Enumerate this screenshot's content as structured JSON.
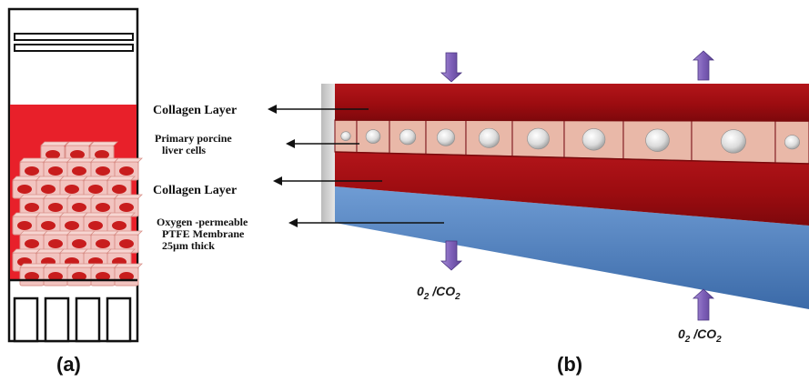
{
  "panel_a": {
    "label": "(a)",
    "colors": {
      "frame": "#111111",
      "medium": "#e8202a",
      "cell_fill": "#f2c4c0",
      "nucleus": "#c81d1d"
    }
  },
  "panel_b": {
    "label": "(b)",
    "labels": {
      "collagen_top": "Collagen  Layer",
      "cells_line1": "Primary porcine",
      "cells_line2": "liver cells",
      "collagen_bottom": "Collagen  Layer",
      "membrane_line1": "Oxygen -permeable",
      "membrane_line2": "PTFE Membrane",
      "membrane_line3": "25µm thick"
    },
    "gas_left": {
      "base": "0",
      "sub": "2",
      "sep": " /CO",
      "sub2": "2"
    },
    "gas_right": {
      "base": "0",
      "sub": "2",
      "sep": " /CO",
      "sub2": "2"
    },
    "colors": {
      "collagen": "#a10d10",
      "cells": "#e7b4a4",
      "membrane": "#4f82c0",
      "arrow": "#8a6ec0"
    }
  }
}
